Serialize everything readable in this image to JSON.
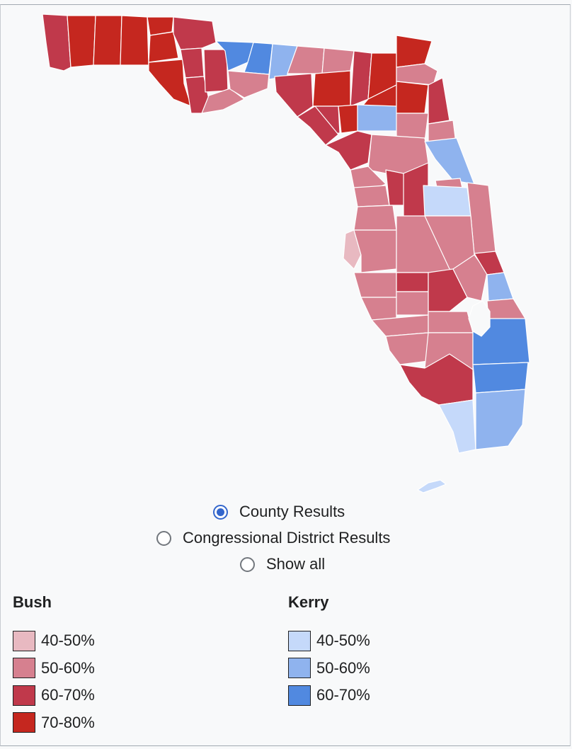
{
  "colors": {
    "bush_40_50": "#e8b9c1",
    "bush_50_60": "#d6808f",
    "bush_60_70": "#c0394b",
    "bush_70_80": "#c5271f",
    "kerry_40_50": "#c5d9fa",
    "kerry_50_60": "#8fb3ee",
    "kerry_60_70": "#5189e0"
  },
  "radios": {
    "county": "County Results",
    "district": "Congressional District Results",
    "all": "Show all",
    "selected": "county"
  },
  "legend": {
    "bush": {
      "title": "Bush",
      "items": [
        "40-50%",
        "50-60%",
        "60-70%",
        "70-80%"
      ]
    },
    "kerry": {
      "title": "Kerry",
      "items": [
        "40-50%",
        "50-60%",
        "60-70%"
      ]
    }
  }
}
